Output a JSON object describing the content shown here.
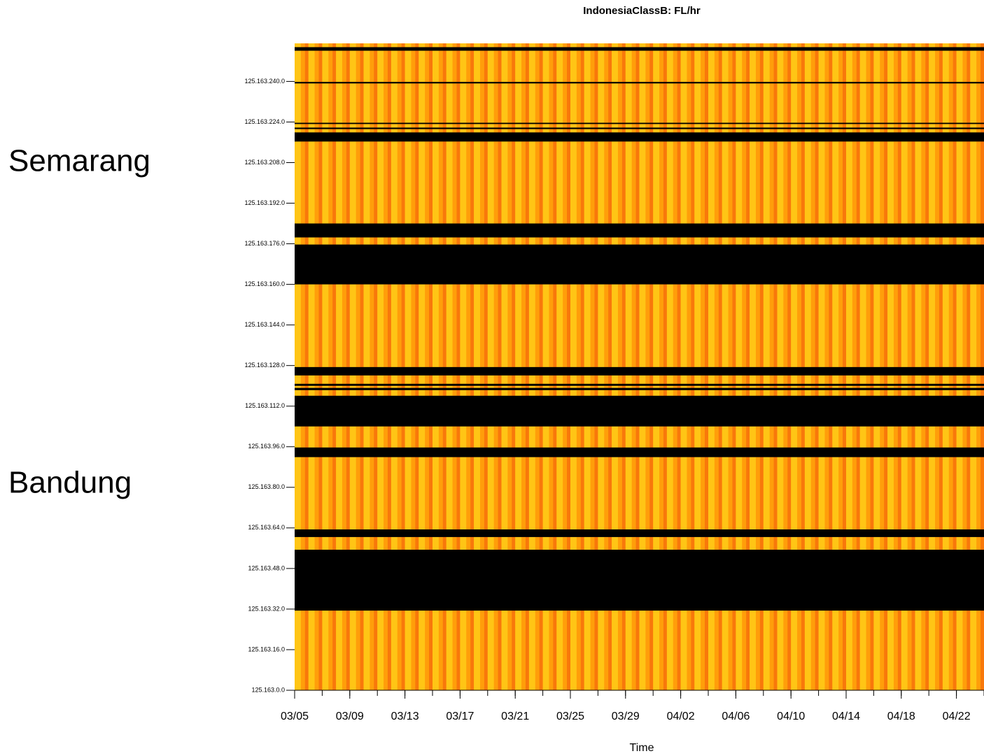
{
  "chart_data": {
    "type": "heatmap",
    "title": "IndonesiaClassB: FL/hr",
    "x_label": "Time",
    "annotations": [
      "Semarang",
      "Bandung"
    ],
    "xlim": [
      "03/05",
      "04/24"
    ],
    "xticks": [
      "03/05",
      "03/09",
      "03/13",
      "03/17",
      "03/21",
      "03/25",
      "03/29",
      "04/02",
      "04/06",
      "04/10",
      "04/14",
      "04/18",
      "04/22"
    ],
    "ylim": [
      0,
      255
    ],
    "yticks": [
      {
        "value": 0,
        "label": "125.163.0.0"
      },
      {
        "value": 16,
        "label": "125.163.16.0"
      },
      {
        "value": 32,
        "label": "125.163.32.0"
      },
      {
        "value": 48,
        "label": "125.163.48.0"
      },
      {
        "value": 64,
        "label": "125.163.64.0"
      },
      {
        "value": 80,
        "label": "125.163.80.0"
      },
      {
        "value": 96,
        "label": "125.163.96.0"
      },
      {
        "value": 112,
        "label": "125.163.112.0"
      },
      {
        "value": 128,
        "label": "125.163.128.0"
      },
      {
        "value": 144,
        "label": "125.163.144.0"
      },
      {
        "value": 160,
        "label": "125.163.160.0"
      },
      {
        "value": 176,
        "label": "125.163.176.0"
      },
      {
        "value": 192,
        "label": "125.163.192.0"
      },
      {
        "value": 208,
        "label": "125.163.208.0"
      },
      {
        "value": 224,
        "label": "125.163.224.0"
      },
      {
        "value": 240,
        "label": "125.163.240.0"
      }
    ],
    "colors": [
      "#ffd21a",
      "#ff9e0a",
      "#f25a0c"
    ],
    "no_data_color": "#000000",
    "no_data_bands": [
      [
        252.1,
        253.5
      ],
      [
        239.2,
        239.8
      ],
      [
        223.2,
        223.7
      ],
      [
        221.2,
        221.8
      ],
      [
        216.3,
        219.9
      ],
      [
        178.5,
        184.0
      ],
      [
        160.0,
        175.7
      ],
      [
        124.1,
        127.4
      ],
      [
        120.0,
        120.8
      ],
      [
        118.3,
        119.2
      ],
      [
        104.0,
        116.1
      ],
      [
        91.9,
        95.7
      ],
      [
        60.4,
        63.4
      ],
      [
        31.4,
        55.4
      ]
    ]
  }
}
